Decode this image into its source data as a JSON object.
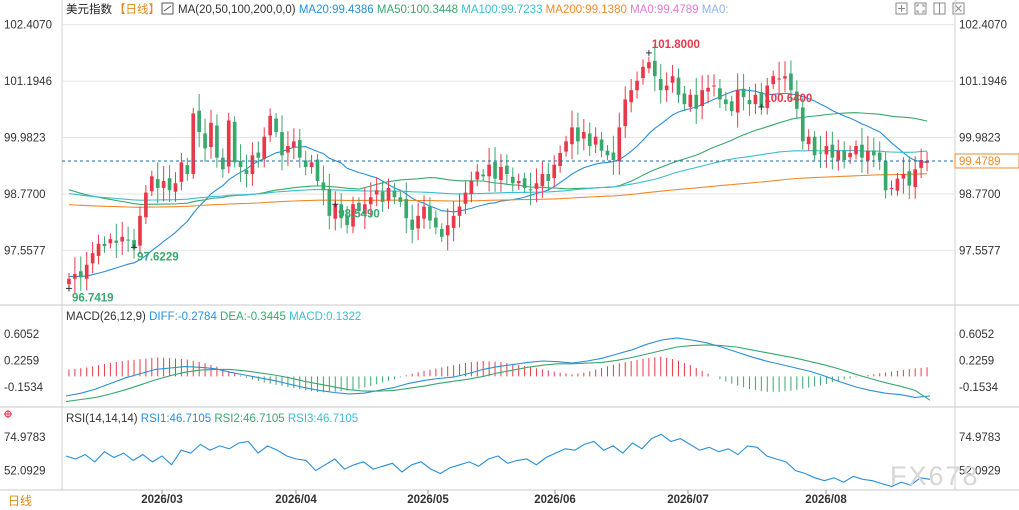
{
  "header": {
    "title": "美元指数",
    "period_tag": "【日线】",
    "ma_legend": [
      {
        "text": "MA(20,50,100,200,0,0)",
        "color": "#333333"
      },
      {
        "text": "MA20:99.4386",
        "color": "#2b8fd6"
      },
      {
        "text": "MA50:100.3448",
        "color": "#3aa76d"
      },
      {
        "text": "MA100:99.7233",
        "color": "#3dbdd0"
      },
      {
        "text": "MA200:99.1380",
        "color": "#f08a2b"
      },
      {
        "text": "MA0:99.4789",
        "color": "#e37ad6"
      },
      {
        "text": "MA0:",
        "color": "#8fb2ee"
      }
    ]
  },
  "macd_legend": [
    {
      "text": "MACD(26,12,9)",
      "color": "#333333"
    },
    {
      "text": "DIFF:-0.2784",
      "color": "#2b8fd6"
    },
    {
      "text": "DEA:-0.3445",
      "color": "#3aa76d"
    },
    {
      "text": "MACD:0.1322",
      "color": "#3dbdd0"
    }
  ],
  "rsi_legend": [
    {
      "text": "RSI(14,14,14)",
      "color": "#333333"
    },
    {
      "text": "RSI1:46.7105",
      "color": "#2b8fd6"
    },
    {
      "text": "RSI2:46.7105",
      "color": "#3aa76d"
    },
    {
      "text": "RSI3:46.7105",
      "color": "#3dbdd0"
    }
  ],
  "footer": {
    "period_label": "日线",
    "watermark": "FX678"
  },
  "colors": {
    "up": "#e8394a",
    "down": "#3aa76d",
    "ma20": "#2b8fd6",
    "ma50": "#3aa76d",
    "ma100": "#3dbdd0",
    "ma200": "#f08a2b",
    "grid": "#e6e6e6",
    "current_line": "#1d6ea8"
  },
  "icons": [
    "ma-settings-icon",
    "add-indicator-icon",
    "fullscreen-icon",
    "layout-icon",
    "close-icon",
    "crosshair-icon"
  ],
  "chart_data": [
    {
      "type": "candlestick",
      "title": "美元指数",
      "y_ticks": [
        "102.4070",
        "101.1946",
        "99.9823",
        "98.7700",
        "97.5577"
      ],
      "ylim": [
        96.45,
        102.55
      ],
      "x_ticks": [
        "2026/03",
        "2026/04",
        "2026/05",
        "2026/06",
        "2026/07",
        "2026/08"
      ],
      "current_price": "99.4789",
      "current_price_value": 99.4789,
      "annotations": [
        {
          "text": "101.8000",
          "value": 101.8,
          "kind": "high"
        },
        {
          "text": "100.6400",
          "value": 100.64,
          "kind": "high"
        },
        {
          "text": "98.5490",
          "value": 98.549,
          "kind": "low"
        },
        {
          "text": "97.6229",
          "value": 97.6229,
          "kind": "low"
        },
        {
          "text": "96.7419",
          "value": 96.7419,
          "kind": "low"
        }
      ],
      "closes": [
        96.95,
        97.05,
        96.98,
        97.25,
        97.5,
        97.7,
        97.65,
        97.8,
        97.72,
        97.85,
        97.78,
        97.6,
        98.3,
        98.8,
        99.15,
        98.9,
        99.05,
        98.85,
        99.0,
        99.45,
        99.2,
        100.5,
        100.1,
        99.75,
        100.3,
        99.55,
        99.3,
        100.35,
        99.45,
        99.35,
        99.2,
        99.6,
        99.55,
        100.0,
        100.45,
        100.1,
        99.6,
        99.8,
        99.9,
        99.55,
        99.35,
        99.45,
        99.05,
        98.85,
        98.3,
        98.55,
        98.25,
        98.1,
        98.55,
        98.4,
        98.55,
        98.7,
        98.85,
        98.6,
        98.9,
        98.7,
        98.6,
        98.25,
        98.0,
        98.3,
        98.5,
        98.2,
        98.05,
        97.85,
        98.1,
        98.3,
        98.5,
        98.8,
        99.05,
        99.25,
        99.15,
        99.4,
        99.1,
        99.35,
        99.2,
        99.0,
        99.05,
        98.9,
        98.85,
        99.0,
        99.2,
        99.05,
        99.4,
        99.65,
        99.9,
        100.2,
        99.9,
        100.1,
        99.8,
        100.0,
        99.7,
        99.6,
        99.5,
        100.2,
        100.8,
        101.0,
        101.2,
        101.5,
        101.6,
        101.3,
        101.0,
        101.1,
        101.3,
        100.9,
        100.7,
        100.9,
        100.6,
        101.0,
        101.05,
        101.1,
        100.8,
        100.7,
        100.55,
        101.0,
        100.85,
        100.7,
        100.9,
        100.65,
        101.1,
        101.3,
        101.25,
        101.3,
        101.0,
        100.6,
        99.9,
        100.0,
        99.6,
        99.65,
        99.8,
        99.55,
        99.7,
        99.5,
        99.65,
        99.8,
        99.55,
        99.7,
        99.6,
        99.5,
        98.85,
        98.9,
        99.1,
        99.2,
        98.95,
        99.3,
        99.5,
        99.48
      ]
    },
    {
      "type": "bar",
      "title": "MACD(26,12,9)",
      "y_ticks": [
        "0.6052",
        "0.2259",
        "-0.1534"
      ],
      "ylim": [
        -0.38,
        0.72
      ],
      "series": [
        {
          "name": "DIFF",
          "values": [
            -0.28,
            -0.24,
            -0.18,
            -0.1,
            -0.02,
            0.04,
            0.1,
            0.12,
            0.14,
            0.13,
            0.11,
            0.06,
            0.02,
            -0.02,
            -0.06,
            -0.11,
            -0.16,
            -0.2,
            -0.23,
            -0.25,
            -0.24,
            -0.2,
            -0.16,
            -0.1,
            -0.06,
            -0.03,
            -0.01,
            0.04,
            0.1,
            0.14,
            0.17,
            0.2,
            0.22,
            0.21,
            0.19,
            0.22,
            0.26,
            0.32,
            0.38,
            0.46,
            0.52,
            0.55,
            0.52,
            0.48,
            0.42,
            0.35,
            0.28,
            0.22,
            0.17,
            0.12,
            0.07,
            0.0,
            -0.08,
            -0.15,
            -0.2,
            -0.24,
            -0.26,
            -0.3,
            -0.28
          ]
        },
        {
          "name": "DEA",
          "values": [
            -0.36,
            -0.33,
            -0.3,
            -0.25,
            -0.19,
            -0.12,
            -0.05,
            0.01,
            0.06,
            0.09,
            0.1,
            0.1,
            0.08,
            0.05,
            0.02,
            -0.02,
            -0.07,
            -0.11,
            -0.15,
            -0.19,
            -0.21,
            -0.21,
            -0.2,
            -0.17,
            -0.14,
            -0.1,
            -0.07,
            -0.04,
            0.0,
            0.05,
            0.09,
            0.13,
            0.16,
            0.18,
            0.18,
            0.19,
            0.2,
            0.23,
            0.27,
            0.32,
            0.37,
            0.42,
            0.44,
            0.45,
            0.44,
            0.42,
            0.38,
            0.34,
            0.3,
            0.26,
            0.21,
            0.16,
            0.1,
            0.03,
            -0.03,
            -0.09,
            -0.14,
            -0.2,
            -0.34
          ]
        },
        {
          "name": "MACD",
          "values": [
            0.1,
            0.12,
            0.16,
            0.2,
            0.23,
            0.25,
            0.27,
            0.26,
            0.24,
            0.2,
            0.14,
            0.06,
            -0.02,
            -0.08,
            -0.12,
            -0.16,
            -0.2,
            -0.23,
            -0.22,
            -0.2,
            -0.16,
            -0.1,
            -0.04,
            0.03,
            0.08,
            0.12,
            0.16,
            0.2,
            0.22,
            0.21,
            0.18,
            0.14,
            0.1,
            0.06,
            0.03,
            0.06,
            0.12,
            0.18,
            0.22,
            0.26,
            0.28,
            0.24,
            0.16,
            0.06,
            -0.04,
            -0.12,
            -0.18,
            -0.22,
            -0.22,
            -0.2,
            -0.16,
            -0.12,
            -0.06,
            -0.02,
            0.02,
            0.05,
            0.08,
            0.11,
            0.13
          ]
        }
      ]
    },
    {
      "type": "line",
      "title": "RSI(14,14,14)",
      "y_ticks": [
        "74.9783",
        "52.0929"
      ],
      "ylim": [
        40,
        82
      ],
      "series": [
        {
          "name": "RSI1",
          "values": [
            62,
            60,
            63,
            58,
            65,
            61,
            64,
            59,
            63,
            58,
            62,
            56,
            66,
            64,
            70,
            66,
            69,
            67,
            71,
            72,
            64,
            69,
            66,
            62,
            60,
            59,
            52,
            56,
            60,
            53,
            56,
            58,
            53,
            55,
            57,
            51,
            56,
            58,
            53,
            50,
            54,
            56,
            58,
            55,
            60,
            62,
            57,
            59,
            60,
            56,
            61,
            64,
            67,
            66,
            70,
            72,
            66,
            69,
            64,
            71,
            67,
            74,
            77,
            72,
            74,
            70,
            66,
            68,
            65,
            67,
            63,
            69,
            68,
            62,
            60,
            58,
            52,
            50,
            47,
            45,
            47,
            44,
            48,
            46,
            45,
            43,
            41,
            44,
            42,
            47,
            46
          ]
        }
      ]
    }
  ]
}
